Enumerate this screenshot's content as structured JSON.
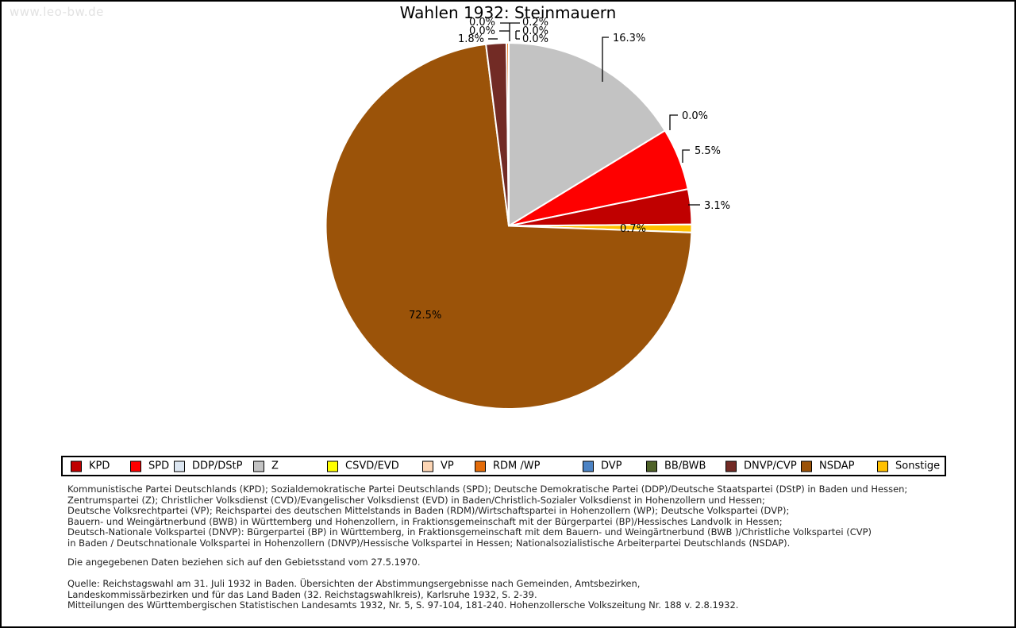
{
  "watermark": "www.leo-bw.de",
  "chart_data": {
    "type": "pie",
    "title": "Wahlen 1932: Steinmauern",
    "unit": "%",
    "legend_position": "bottom",
    "slices": [
      {
        "party": "KPD",
        "value": 3.1,
        "color": "#c00000"
      },
      {
        "party": "SPD",
        "value": 5.5,
        "color": "#fe0000"
      },
      {
        "party": "DDP/DStP",
        "value": 0.0,
        "color": "#dce6f1"
      },
      {
        "party": "Z",
        "value": 16.3,
        "color": "#c3c3c3"
      },
      {
        "party": "CSVD/EVD",
        "value": 0.0,
        "color": "#ffff00"
      },
      {
        "party": "VP",
        "value": 0.0,
        "color": "#fcd5b4"
      },
      {
        "party": "RDM /WP",
        "value": 0.2,
        "color": "#e36c0a"
      },
      {
        "party": "DVP",
        "value": 0.0,
        "color": "#4c83c4"
      },
      {
        "party": "BB/BWB",
        "value": 0.0,
        "color": "#4f6228"
      },
      {
        "party": "DNVP/CVP",
        "value": 1.8,
        "color": "#722b25"
      },
      {
        "party": "NSDAP",
        "value": 72.5,
        "color": "#9b5309"
      },
      {
        "party": "Sonstige",
        "value": 0.7,
        "color": "#ffc000"
      }
    ],
    "draw_order_clockwise_from_top": [
      "Z",
      "DDP/DStP",
      "SPD",
      "KPD",
      "Sonstige",
      "NSDAP",
      "DNVP/CVP",
      "BB/BWB",
      "DVP",
      "RDM /WP",
      "VP",
      "CSVD/EVD"
    ]
  },
  "footnotes": {
    "party_definitions": [
      "Kommunistische Partei Deutschlands (KPD); Sozialdemokratische Partei Deutschlands (SPD); Deutsche Demokratische Partei (DDP)/Deutsche Staatspartei (DStP) in Baden und Hessen;",
      "Zentrumspartei (Z); Christlicher Volksdienst (CVD)/Evangelischer Volksdienst (EVD) in Baden/Christlich-Sozialer Volksdienst in Hohenzollern und Hessen;",
      "Deutsche Volksrechtpartei (VP); Reichspartei des deutschen Mittelstands in Baden (RDM)/Wirtschaftspartei in Hohenzollern (WP); Deutsche Volkspartei (DVP);",
      "Bauern- und Weingärtnerbund (BWB) in Württemberg und Hohenzollern, in Fraktionsgemeinschaft mit der Bürgerpartei (BP)/Hessisches Landvolk in Hessen;",
      "Deutsch-Nationale Volkspartei (DNVP): Bürgerpartei (BP) in Württemberg, in Fraktionsgemeinschaft mit dem Bauern- und Weingärtnerbund (BWB )/Christliche Volkspartei (CVP)",
      "in Baden / Deutschnationale Volkspartei in Hohenzollern (DNVP)/Hessische Volkspartei in Hessen; Nationalsozialistische Arbeiterpartei Deutschlands (NSDAP)."
    ],
    "territorial_note": "Die angegebenen Daten beziehen sich auf den Gebietsstand vom 27.5.1970.",
    "source_lines": [
      "Quelle: Reichstagswahl am 31. Juli 1932 in Baden. Übersichten der Abstimmungsergebnisse nach Gemeinden, Amtsbezirken,",
      "Landeskommissärbezirken und für das Land Baden (32. Reichstagswahlkreis), Karlsruhe 1932, S. 2-39.",
      "Mitteilungen des Württembergischen Statistischen Landesamts 1932, Nr. 5, S. 97-104, 181-240. Hohenzollersche Volkszeitung Nr. 188 v. 2.8.1932."
    ]
  }
}
